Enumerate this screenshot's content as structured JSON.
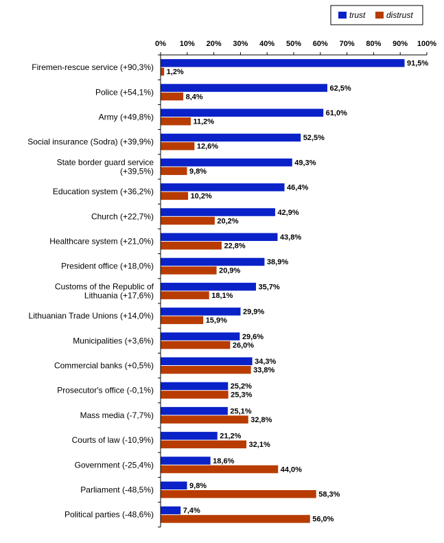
{
  "chart_data": {
    "type": "bar",
    "orientation": "horizontal",
    "categories": [
      "Firemen-rescue service (+90,3%)",
      "Police (+54,1%)",
      "Army (+49,8%)",
      "Social insurance (Sodra) (+39,9%)",
      "State border guard service (+39,5%)",
      "Education system (+36,2%)",
      "Church (+22,7%)",
      "Healthcare system (+21,0%)",
      "President office (+18,0%)",
      "Customs of the Republic of Lithuania (+17,6%)",
      "Lithuanian Trade Unions (+14,0%)",
      "Municipalities (+3,6%)",
      "Commercial banks (+0,5%)",
      "Prosecutor's office (-0,1%)",
      "Mass media (-7,7%)",
      "Courts of law (-10,9%)",
      "Government (-25,4%)",
      "Parliament (-48,5%)",
      "Political parties (-48,6%)"
    ],
    "category_lines": [
      [
        "Firemen-rescue service (+90,3%)"
      ],
      [
        "Police (+54,1%)"
      ],
      [
        "Army (+49,8%)"
      ],
      [
        "Social insurance (Sodra) (+39,9%)"
      ],
      [
        "State border guard service",
        "(+39,5%)"
      ],
      [
        "Education system (+36,2%)"
      ],
      [
        "Church (+22,7%)"
      ],
      [
        "Healthcare system (+21,0%)"
      ],
      [
        "President office (+18,0%)"
      ],
      [
        "Customs of the Republic of",
        "Lithuania (+17,6%)"
      ],
      [
        "Lithuanian Trade Unions (+14,0%)"
      ],
      [
        "Municipalities (+3,6%)"
      ],
      [
        "Commercial banks (+0,5%)"
      ],
      [
        "Prosecutor's office (-0,1%)"
      ],
      [
        "Mass media (-7,7%)"
      ],
      [
        "Courts of law (-10,9%)"
      ],
      [
        "Government (-25,4%)"
      ],
      [
        "Parliament (-48,5%)"
      ],
      [
        "Political parties (-48,6%)"
      ]
    ],
    "series": [
      {
        "name": "trust",
        "color": "#0a22c8",
        "values": [
          91.5,
          62.5,
          61.0,
          52.5,
          49.3,
          46.4,
          42.9,
          43.8,
          38.9,
          35.7,
          29.9,
          29.6,
          34.3,
          25.2,
          25.1,
          21.2,
          18.6,
          9.8,
          7.4
        ],
        "labels": [
          "91,5%",
          "62,5%",
          "61,0%",
          "52,5%",
          "49,3%",
          "46,4%",
          "42,9%",
          "43,8%",
          "38,9%",
          "35,7%",
          "29,9%",
          "29,6%",
          "34,3%",
          "25,2%",
          "25,1%",
          "21,2%",
          "18,6%",
          "9,8%",
          "7,4%"
        ]
      },
      {
        "name": "distrust",
        "color": "#b83c00",
        "values": [
          1.2,
          8.4,
          11.2,
          12.6,
          9.8,
          10.2,
          20.2,
          22.8,
          20.9,
          18.1,
          15.9,
          26.0,
          33.8,
          25.3,
          32.8,
          32.1,
          44.0,
          58.3,
          56.0
        ],
        "labels": [
          "1,2%",
          "8,4%",
          "11,2%",
          "12,6%",
          "9,8%",
          "10,2%",
          "20,2%",
          "22,8%",
          "20,9%",
          "18,1%",
          "15,9%",
          "26,0%",
          "33,8%",
          "25,3%",
          "32,8%",
          "32,1%",
          "44,0%",
          "58,3%",
          "56,0%"
        ]
      }
    ],
    "xlim": [
      0,
      100
    ],
    "x_ticks": [
      "0%",
      "10%",
      "20%",
      "30%",
      "40%",
      "50%",
      "60%",
      "70%",
      "80%",
      "90%",
      "100%"
    ],
    "x_axis_position": "top",
    "grid": false,
    "legend_position": "top-right",
    "title": "",
    "xlabel": "",
    "ylabel": ""
  }
}
